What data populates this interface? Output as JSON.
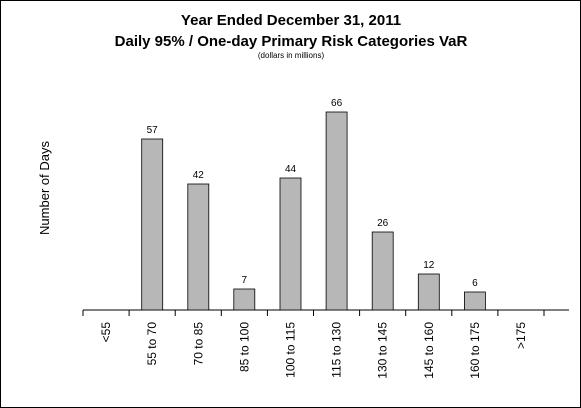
{
  "chart_data": {
    "type": "bar",
    "title": "Year Ended December 31, 2011",
    "title_line2": "Daily 95% / One-day Primary Risk Categories VaR",
    "subtitle": "(dollars in millions)",
    "xlabel": "",
    "ylabel": "Number of Days",
    "categories": [
      "<55",
      "55 to 70",
      "70 to 85",
      "85 to 100",
      "100 to 115",
      "115 to 130",
      "130 to 145",
      "145 to 160",
      "160 to 175",
      ">175"
    ],
    "values": [
      0,
      57,
      42,
      7,
      44,
      66,
      26,
      12,
      6,
      0
    ],
    "data_labels": [
      "",
      "57",
      "42",
      "7",
      "44",
      "66",
      "26",
      "12",
      "6",
      ""
    ],
    "ylim": [
      0,
      70
    ],
    "grid": false,
    "legend": "none",
    "bar_color": "#b7b7b7",
    "bar_stroke": "#000000"
  }
}
